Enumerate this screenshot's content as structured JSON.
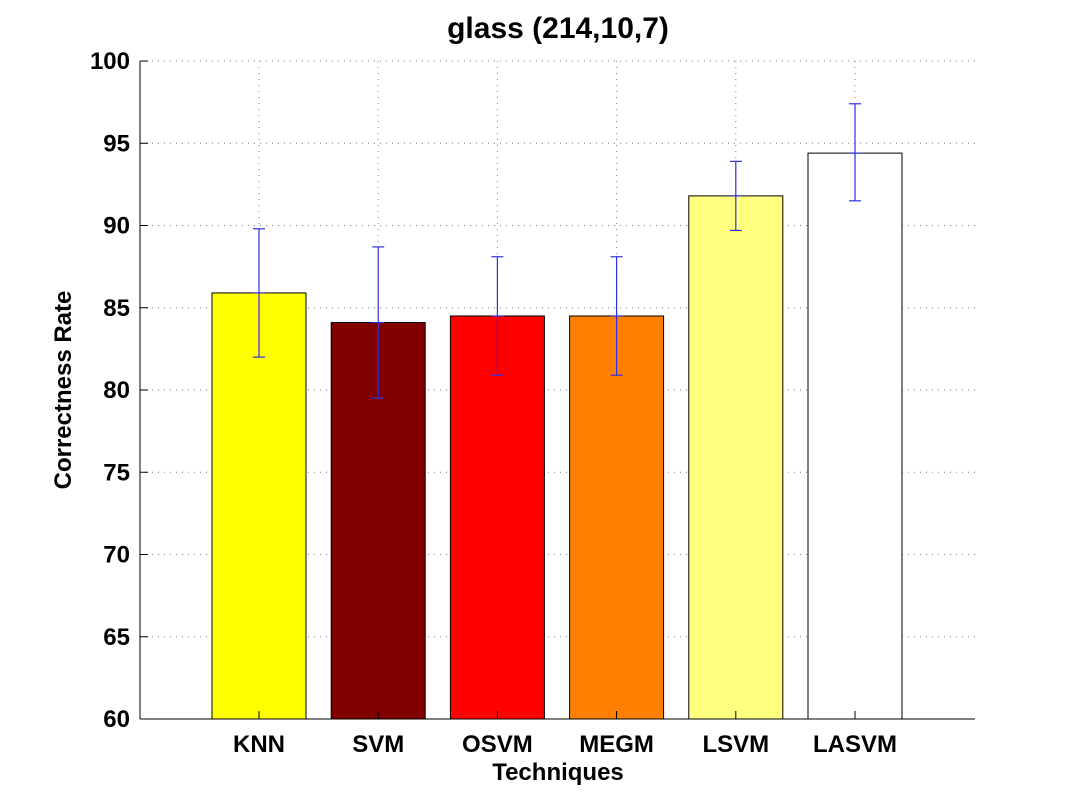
{
  "chart_data": {
    "type": "bar",
    "title": "glass (214,10,7)",
    "xlabel": "Techniques",
    "ylabel": "Correctness Rate",
    "categories": [
      "KNN",
      "SVM",
      "OSVM",
      "MEGM",
      "LSVM",
      "LASVM"
    ],
    "values": [
      85.9,
      84.1,
      84.5,
      84.5,
      91.8,
      94.4
    ],
    "error_low": [
      82.0,
      79.5,
      80.9,
      80.9,
      89.7,
      91.5
    ],
    "error_high": [
      89.8,
      88.7,
      88.1,
      88.1,
      93.9,
      97.4
    ],
    "bar_colors": [
      "#ffff00",
      "#800000",
      "#ff0000",
      "#ff8000",
      "#ffff80",
      "#ffffff"
    ],
    "error_color": "#3030e0",
    "ylim": [
      60,
      100
    ],
    "yticks": [
      60,
      65,
      70,
      75,
      80,
      85,
      90,
      95,
      100
    ],
    "grid": true,
    "legend": false
  }
}
